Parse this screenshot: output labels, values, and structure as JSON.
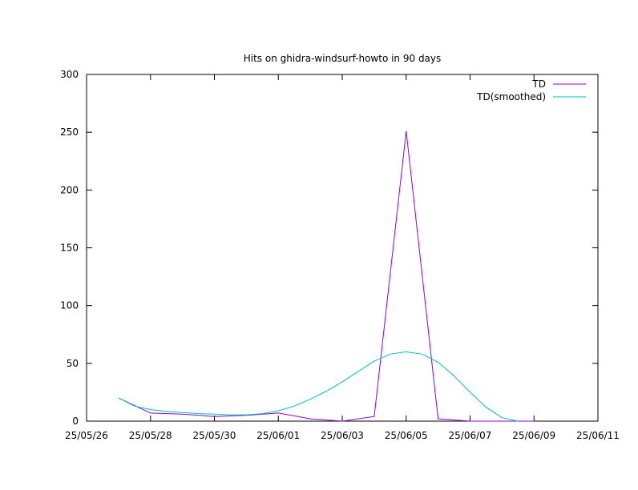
{
  "chart_data": {
    "type": "line",
    "title": "Hits on ghidra-windsurf-howto in 90 days",
    "xlabel": "",
    "ylabel": "",
    "x_ticks": [
      "25/05/26",
      "25/05/28",
      "25/05/30",
      "25/06/01",
      "25/06/03",
      "25/06/05",
      "25/06/07",
      "25/06/09",
      "25/06/11"
    ],
    "xlim": [
      "2025-05-26",
      "2025-06-11"
    ],
    "y_ticks": [
      0,
      50,
      100,
      150,
      200,
      250,
      300
    ],
    "ylim": [
      0,
      300
    ],
    "grid": false,
    "legend_position": "top-right",
    "series": [
      {
        "name": "TD",
        "color": "#9400d3",
        "x": [
          "2025-05-27",
          "2025-05-28",
          "2025-05-29",
          "2025-05-30",
          "2025-05-31",
          "2025-06-01",
          "2025-06-02",
          "2025-06-03",
          "2025-06-04",
          "2025-06-05",
          "2025-06-06",
          "2025-06-07",
          "2025-06-08",
          "2025-06-09"
        ],
        "values": [
          20,
          7,
          6,
          4,
          5,
          7,
          2,
          0,
          4,
          251,
          2,
          0,
          0,
          0
        ]
      },
      {
        "name": "TD(smoothed)",
        "color": "#00c0c0",
        "x": [
          "2025-05-27",
          "2025-05-27T12:00",
          "2025-05-28",
          "2025-05-28T12:00",
          "2025-05-29",
          "2025-05-29T12:00",
          "2025-05-30",
          "2025-05-30T12:00",
          "2025-05-31",
          "2025-05-31T12:00",
          "2025-06-01",
          "2025-06-01T12:00",
          "2025-06-02",
          "2025-06-02T12:00",
          "2025-06-03",
          "2025-06-03T12:00",
          "2025-06-04",
          "2025-06-04T12:00",
          "2025-06-05",
          "2025-06-05T12:00",
          "2025-06-06",
          "2025-06-06T12:00",
          "2025-06-07",
          "2025-06-07T12:00",
          "2025-06-08",
          "2025-06-08T12:00"
        ],
        "values": [
          20,
          13,
          10,
          8.5,
          7.5,
          6.5,
          6,
          5.5,
          5.5,
          6.5,
          9,
          13,
          19,
          26,
          34,
          43,
          52,
          58,
          60,
          58,
          51,
          39,
          25,
          12,
          3,
          0
        ]
      }
    ]
  }
}
